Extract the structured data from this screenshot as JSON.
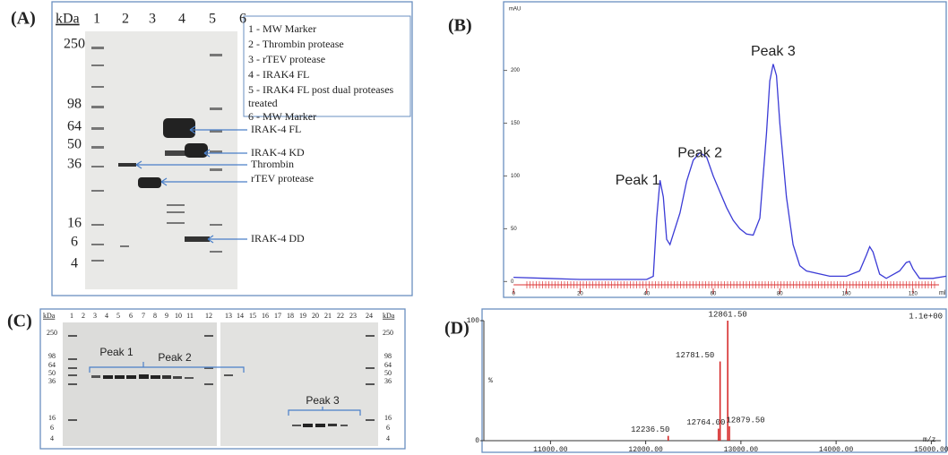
{
  "panel_a": {
    "label": "(A)",
    "kda_label": "kDa",
    "lanes": [
      "1",
      "2",
      "3",
      "4",
      "5",
      "6"
    ],
    "markers": [
      "250",
      "98",
      "64",
      "50",
      "36",
      "16",
      "6",
      "4"
    ],
    "legend": [
      "1 - MW Marker",
      "2 - Thrombin protease",
      "3 - rTEV protease",
      "4 - IRAK4 FL",
      "5 - IRAK4 FL post dual proteases",
      "treated",
      "6 - MW Marker"
    ],
    "annotations": [
      "IRAK-4 FL",
      "IRAK-4 KD",
      "Thrombin",
      "rTEV protease",
      "IRAK-4 DD"
    ]
  },
  "panel_b": {
    "label": "(B)",
    "type": "line",
    "y_unit": "mAU",
    "x_unit": "ml",
    "color": "#3b3bd6",
    "xlim": [
      -3,
      130
    ],
    "ylim": [
      -15,
      265
    ],
    "xticks": [
      0,
      20,
      40,
      60,
      80,
      100,
      120
    ],
    "yticks": [
      0,
      50,
      100,
      150,
      200
    ],
    "x": [
      0,
      10,
      20,
      30,
      40,
      42,
      43,
      44,
      45,
      46,
      47,
      48,
      50,
      52,
      54,
      56,
      58,
      60,
      62,
      64,
      66,
      68,
      70,
      72,
      74,
      76,
      77,
      78,
      79,
      80,
      82,
      84,
      86,
      88,
      95,
      100,
      104,
      106,
      107,
      108,
      110,
      112,
      116,
      118,
      119,
      120,
      122,
      126,
      130
    ],
    "values": [
      4,
      3,
      2,
      2,
      2,
      5,
      60,
      96,
      80,
      40,
      35,
      45,
      65,
      95,
      115,
      122,
      118,
      100,
      85,
      70,
      58,
      50,
      45,
      44,
      60,
      140,
      190,
      206,
      195,
      150,
      80,
      35,
      15,
      10,
      5,
      5,
      10,
      25,
      33,
      28,
      7,
      3,
      10,
      18,
      19,
      12,
      3,
      3,
      5
    ],
    "annotations": [
      "Peak 1",
      "Peak 2",
      "Peak 3"
    ]
  },
  "panel_c": {
    "label": "(C)",
    "kda_label": "kDa",
    "lanes": [
      "1",
      "2",
      "3",
      "4",
      "5",
      "6",
      "7",
      "8",
      "9",
      "10",
      "11",
      "12",
      "13",
      "14",
      "15",
      "16",
      "17",
      "18",
      "19",
      "20",
      "21",
      "22",
      "23",
      "24"
    ],
    "markers_left": [
      "250",
      "98",
      "64",
      "50",
      "36",
      "16",
      "6",
      "4"
    ],
    "markers_right": [
      "250",
      "98",
      "64",
      "50",
      "36",
      "16",
      "6",
      "4"
    ],
    "annotations": [
      "Peak 1",
      "Peak 2",
      "Peak 3"
    ]
  },
  "panel_d": {
    "label": "(D)",
    "type": "stick",
    "color": "#d42020",
    "y_label": "%",
    "x_label": "m/z",
    "scale_label": "1.1e+00",
    "xlim": [
      10300,
      15100
    ],
    "ylim": [
      0,
      100
    ],
    "xticks": [
      {
        "value": 11000,
        "label": "11000.00"
      },
      {
        "value": 12000,
        "label": "12000.00"
      },
      {
        "value": 13000,
        "label": "13000.00"
      },
      {
        "value": 14000,
        "label": "14000.00"
      },
      {
        "value": 15000,
        "label": "15000.00"
      }
    ],
    "yticks": [
      0,
      100
    ],
    "x": [
      12236.5,
      12764,
      12781.5,
      12861.5,
      12879.5
    ],
    "values": [
      4,
      10,
      66,
      100,
      12
    ],
    "x_labels": [
      "12236.50",
      "12764.00",
      "12781.50",
      "12861.50",
      "12879.50"
    ]
  }
}
